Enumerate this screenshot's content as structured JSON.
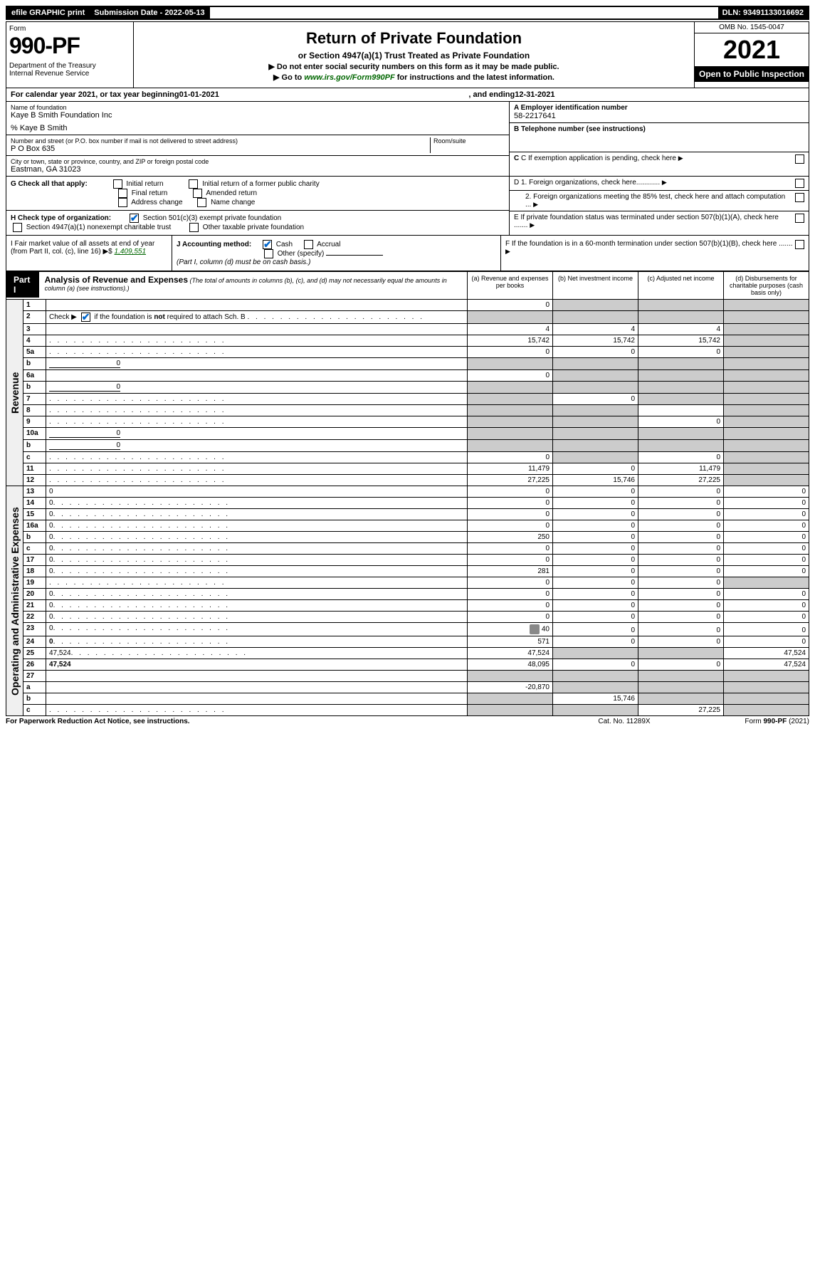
{
  "top_bar": {
    "efile": "efile GRAPHIC print",
    "submission_label": "Submission Date - 2022-05-13",
    "dln": "DLN: 93491133016692"
  },
  "header": {
    "form_label": "Form",
    "form_no": "990-PF",
    "dept": "Department of the Treasury\nInternal Revenue Service",
    "title": "Return of Private Foundation",
    "subtitle": "or Section 4947(a)(1) Trust Treated as Private Foundation",
    "note1": "▶ Do not enter social security numbers on this form as it may be made public.",
    "note2_prefix": "▶ Go to ",
    "note2_link": "www.irs.gov/Form990PF",
    "note2_suffix": " for instructions and the latest information.",
    "omb": "OMB No. 1545-0047",
    "year": "2021",
    "open_public": "Open to Public Inspection"
  },
  "cal_year": {
    "prefix": "For calendar year 2021, or tax year beginning ",
    "begin": "01-01-2021",
    "middle": ", and ending ",
    "end": "12-31-2021"
  },
  "entity": {
    "name_label": "Name of foundation",
    "name": "Kaye B Smith Foundation Inc",
    "care_of": "% Kaye B Smith",
    "addr_label": "Number and street (or P.O. box number if mail is not delivered to street address)",
    "addr": "P O Box 635",
    "room_label": "Room/suite",
    "city_label": "City or town, state or province, country, and ZIP or foreign postal code",
    "city": "Eastman, GA  31023",
    "a_label": "A Employer identification number",
    "ein": "58-2217641",
    "b_label": "B Telephone number (see instructions)",
    "c_label": "C If exemption application is pending, check here",
    "d1_label": "D 1. Foreign organizations, check here............",
    "d2_label": "2. Foreign organizations meeting the 85% test, check here and attach computation ...",
    "e_label": "E If private foundation status was terminated under section 507(b)(1)(A), check here .......",
    "f_label": "F  If the foundation is in a 60-month termination under section 507(b)(1)(B), check here ......."
  },
  "checks": {
    "g_label": "G Check all that apply:",
    "g_opts": [
      "Initial return",
      "Initial return of a former public charity",
      "Final return",
      "Amended return",
      "Address change",
      "Name change"
    ],
    "h_label": "H Check type of organization:",
    "h_opts": [
      "Section 501(c)(3) exempt private foundation",
      "Section 4947(a)(1) nonexempt charitable trust",
      "Other taxable private foundation"
    ],
    "i_label": "I Fair market value of all assets at end of year (from Part II, col. (c), line 16) ▶$ ",
    "i_value": "1,409,551",
    "j_label": "J Accounting method:",
    "j_opts": [
      "Cash",
      "Accrual",
      "Other (specify)"
    ],
    "j_note": "(Part I, column (d) must be on cash basis.)"
  },
  "part1": {
    "label": "Part I",
    "title": "Analysis of Revenue and Expenses",
    "title_note": "(The total of amounts in columns (b), (c), and (d) may not necessarily equal the amounts in column (a) (see instructions).)",
    "col_a": "(a)  Revenue and expenses per books",
    "col_b": "(b)  Net investment income",
    "col_c": "(c)  Adjusted net income",
    "col_d": "(d)  Disbursements for charitable purposes (cash basis only)"
  },
  "sections": {
    "revenue": "Revenue",
    "expenses": "Operating and Administrative Expenses"
  },
  "rows": [
    {
      "n": "1",
      "d": "",
      "a": "0",
      "b": "",
      "c": "",
      "ds": false,
      "bs": true,
      "cs": true
    },
    {
      "n": "2",
      "d": "",
      "a": "",
      "b": "",
      "c": "",
      "as": true,
      "bs": true,
      "cs": true,
      "ds": true,
      "checked": true,
      "bold_not": true
    },
    {
      "n": "3",
      "d": "",
      "a": "4",
      "b": "4",
      "c": "4"
    },
    {
      "n": "4",
      "d": "",
      "a": "15,742",
      "b": "15,742",
      "c": "15,742",
      "dots": true
    },
    {
      "n": "5a",
      "d": "",
      "a": "0",
      "b": "0",
      "c": "0",
      "dots": true
    },
    {
      "n": "b",
      "d": "",
      "inline": "0",
      "a": "",
      "b": "",
      "c": "",
      "as": true,
      "bs": true,
      "cs": true,
      "ds": true
    },
    {
      "n": "6a",
      "d": "",
      "a": "0",
      "b": "",
      "c": "",
      "bs": true,
      "cs": true
    },
    {
      "n": "b",
      "d": "",
      "inline": "0",
      "a": "",
      "b": "",
      "c": "",
      "as": true,
      "bs": true,
      "cs": true,
      "ds": true
    },
    {
      "n": "7",
      "d": "",
      "a": "",
      "b": "0",
      "c": "",
      "as": true,
      "cs": true,
      "dots": true
    },
    {
      "n": "8",
      "d": "",
      "a": "",
      "b": "",
      "c": "",
      "as": true,
      "bs": true,
      "dots": true
    },
    {
      "n": "9",
      "d": "",
      "a": "",
      "b": "",
      "c": "0",
      "as": true,
      "bs": true,
      "dots": true
    },
    {
      "n": "10a",
      "d": "",
      "inline": "0",
      "a": "",
      "b": "",
      "c": "",
      "as": true,
      "bs": true,
      "cs": true,
      "ds": true
    },
    {
      "n": "b",
      "d": "",
      "inline": "0",
      "a": "",
      "b": "",
      "c": "",
      "as": true,
      "bs": true,
      "cs": true,
      "ds": true,
      "dots": true
    },
    {
      "n": "c",
      "d": "",
      "a": "0",
      "b": "",
      "c": "0",
      "bs": true,
      "dots": true
    },
    {
      "n": "11",
      "d": "",
      "a": "11,479",
      "b": "0",
      "c": "11,479",
      "dots": true
    },
    {
      "n": "12",
      "d": "",
      "a": "27,225",
      "b": "15,746",
      "c": "27,225",
      "bold": true,
      "dots": true
    }
  ],
  "exp_rows": [
    {
      "n": "13",
      "d": "0",
      "a": "0",
      "b": "0",
      "c": "0"
    },
    {
      "n": "14",
      "d": "0",
      "a": "0",
      "b": "0",
      "c": "0",
      "dots": true
    },
    {
      "n": "15",
      "d": "0",
      "a": "0",
      "b": "0",
      "c": "0",
      "dots": true
    },
    {
      "n": "16a",
      "d": "0",
      "a": "0",
      "b": "0",
      "c": "0",
      "dots": true
    },
    {
      "n": "b",
      "d": "0",
      "a": "250",
      "b": "0",
      "c": "0",
      "dots": true
    },
    {
      "n": "c",
      "d": "0",
      "a": "0",
      "b": "0",
      "c": "0",
      "dots": true
    },
    {
      "n": "17",
      "d": "0",
      "a": "0",
      "b": "0",
      "c": "0",
      "dots": true
    },
    {
      "n": "18",
      "d": "0",
      "a": "281",
      "b": "0",
      "c": "0",
      "dots": true
    },
    {
      "n": "19",
      "d": "",
      "a": "0",
      "b": "0",
      "c": "0",
      "ds": true,
      "dots": true
    },
    {
      "n": "20",
      "d": "0",
      "a": "0",
      "b": "0",
      "c": "0",
      "dots": true
    },
    {
      "n": "21",
      "d": "0",
      "a": "0",
      "b": "0",
      "c": "0",
      "dots": true
    },
    {
      "n": "22",
      "d": "0",
      "a": "0",
      "b": "0",
      "c": "0",
      "dots": true
    },
    {
      "n": "23",
      "d": "0",
      "a": "40",
      "b": "0",
      "c": "0",
      "clip": true,
      "dots": true
    },
    {
      "n": "24",
      "d": "0",
      "a": "571",
      "b": "0",
      "c": "0",
      "bold": true,
      "dots": true
    },
    {
      "n": "25",
      "d": "47,524",
      "a": "47,524",
      "b": "",
      "c": "",
      "bs": true,
      "cs": true,
      "dots": true
    },
    {
      "n": "26",
      "d": "47,524",
      "a": "48,095",
      "b": "0",
      "c": "0",
      "bold": true
    },
    {
      "n": "27",
      "d": "",
      "a": "",
      "b": "",
      "c": "",
      "as": true,
      "bs": true,
      "cs": true,
      "ds": true
    },
    {
      "n": "a",
      "d": "",
      "a": "-20,870",
      "b": "",
      "c": "",
      "bs": true,
      "cs": true,
      "ds": true,
      "bold": true
    },
    {
      "n": "b",
      "d": "",
      "a": "",
      "b": "15,746",
      "c": "",
      "as": true,
      "cs": true,
      "ds": true,
      "bold": true
    },
    {
      "n": "c",
      "d": "",
      "a": "",
      "b": "",
      "c": "27,225",
      "as": true,
      "bs": true,
      "ds": true,
      "bold": true,
      "dots": true
    }
  ],
  "footer": {
    "paperwork": "For Paperwork Reduction Act Notice, see instructions.",
    "cat": "Cat. No. 11289X",
    "form": "Form 990-PF (2021)"
  },
  "colors": {
    "shaded": "#cccccc",
    "check_blue": "#0066cc",
    "link_green": "#006600"
  }
}
